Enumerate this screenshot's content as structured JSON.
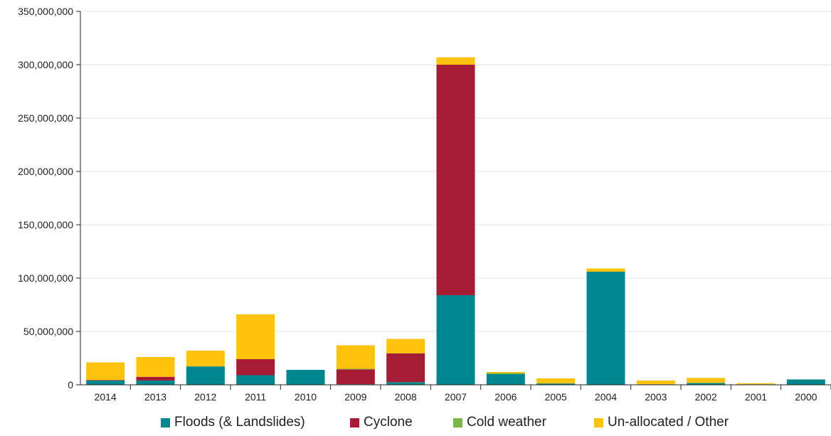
{
  "chart_data": {
    "type": "bar",
    "stacked": true,
    "categories": [
      "2014",
      "2013",
      "2012",
      "2011",
      "2010",
      "2009",
      "2008",
      "2007",
      "2006",
      "2005",
      "2004",
      "2003",
      "2002",
      "2001",
      "2000"
    ],
    "series": [
      {
        "name": "Floods (& Landslides)",
        "color": "#00868e",
        "values": [
          4000000,
          4000000,
          17000000,
          9000000,
          14000000,
          500000,
          2500000,
          84000000,
          10000000,
          1000000,
          106000000,
          500000,
          1500000,
          500000,
          5000000
        ]
      },
      {
        "name": "Cyclone",
        "color": "#a61c35",
        "values": [
          500000,
          3500000,
          0,
          15000000,
          0,
          14000000,
          27000000,
          216000000,
          0,
          0,
          0,
          0,
          0,
          0,
          0
        ]
      },
      {
        "name": "Cold weather",
        "color": "#7ab648",
        "values": [
          0,
          0,
          500000,
          0,
          0,
          500000,
          0,
          0,
          1000000,
          500000,
          0,
          0,
          500000,
          0,
          0
        ]
      },
      {
        "name": "Un-allocated / Other",
        "color": "#ffc20e",
        "values": [
          16500000,
          18500000,
          14500000,
          42000000,
          0,
          22000000,
          13500000,
          7000000,
          1000000,
          4500000,
          3000000,
          3500000,
          4500000,
          1000000,
          0
        ]
      }
    ],
    "y_ticks": [
      "0",
      "50,000,000",
      "100,000,000",
      "150,000,000",
      "200,000,000",
      "250,000,000",
      "300,000,000",
      "350,000,000"
    ],
    "ylim": [
      0,
      350000000
    ],
    "grid": true,
    "legend_position": "bottom"
  }
}
